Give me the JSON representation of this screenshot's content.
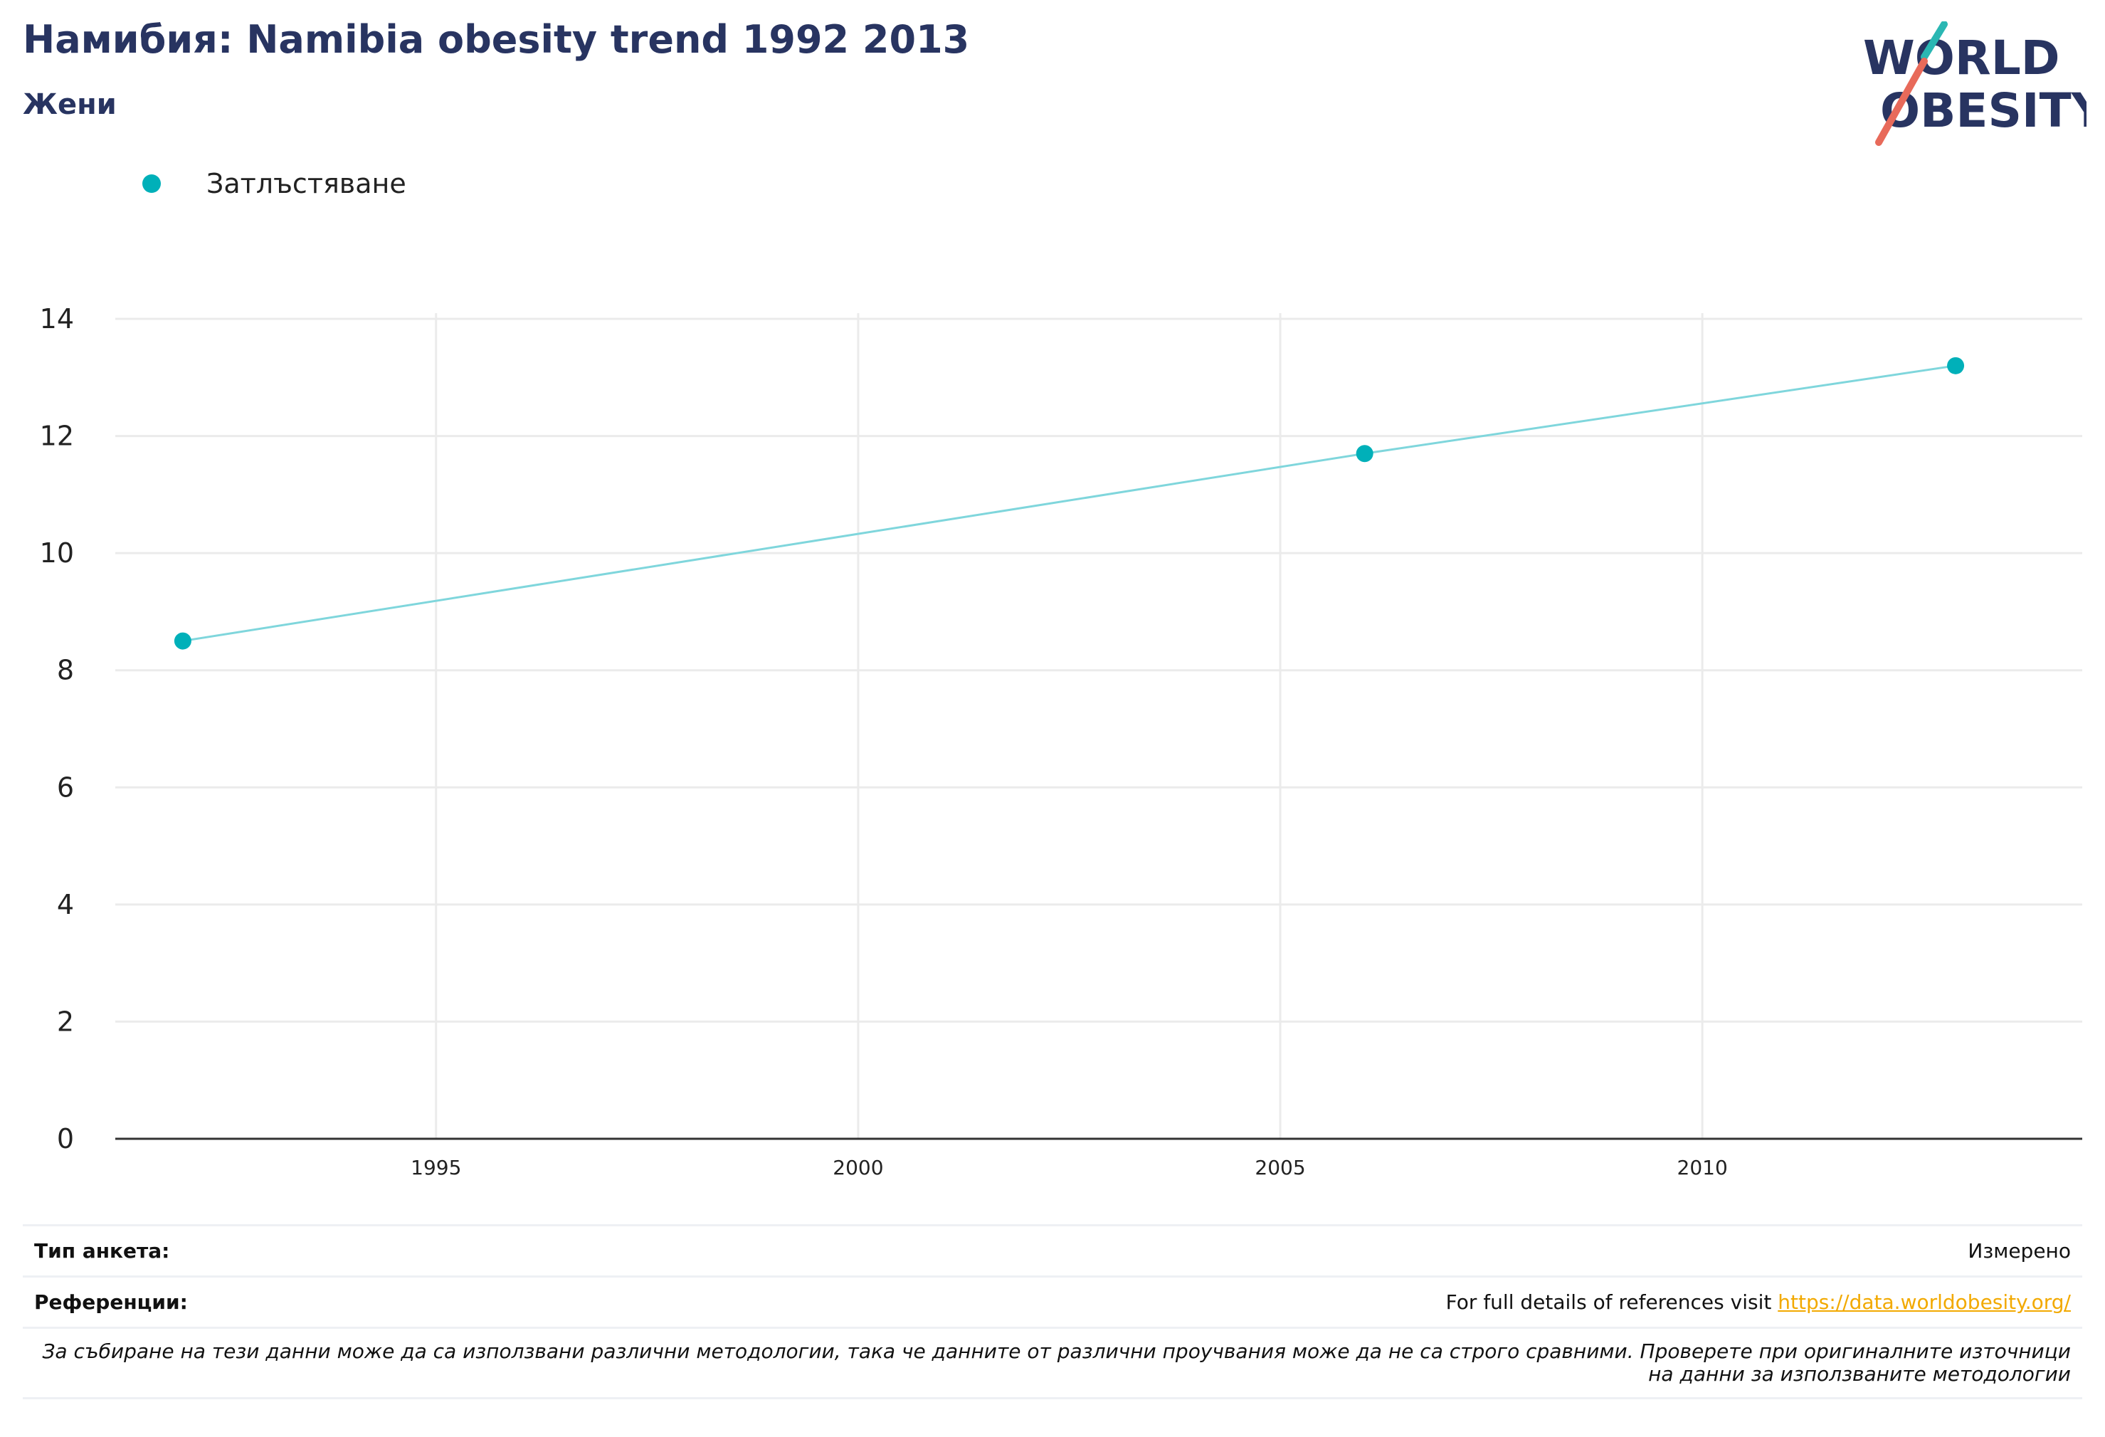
{
  "header": {
    "title": "Намибия: Namibia obesity trend 1992 2013",
    "subtitle": "Жени"
  },
  "logo": {
    "line1": "WORLD",
    "line2": "OBESITY",
    "text_color": "#283461",
    "slash_teal": "#2ab7b3",
    "slash_red": "#e86a5a"
  },
  "colors": {
    "series_point": "#00b0b9",
    "series_line": "#7fd6dc",
    "grid": "#ebebeb",
    "axis": "#333333"
  },
  "chart_data": {
    "type": "line",
    "series": [
      {
        "name": "Затлъстяване",
        "x": [
          1992,
          2006,
          2013
        ],
        "y": [
          8.5,
          11.7,
          13.2
        ]
      }
    ],
    "xlim": [
      1991.2,
      2014.5
    ],
    "ylim": [
      0,
      14
    ],
    "xticks": [
      1995,
      2000,
      2005,
      2010
    ],
    "yticks": [
      0,
      2,
      4,
      6,
      8,
      10,
      12,
      14
    ],
    "grid": true,
    "legend_position": "top-left"
  },
  "footer": {
    "survey_type_label": "Тип анкета:",
    "survey_type_value": "Измерено",
    "references_label": "Референции:",
    "references_text": "For full details of references visit ",
    "references_link": "https://data.worldobesity.org/",
    "note": "За събиране на тези данни може да са използвани различни методологии, така че данните от различни проучвания може да не са строго сравними. Проверете при оригиналните източници на данни за използваните методологии"
  }
}
